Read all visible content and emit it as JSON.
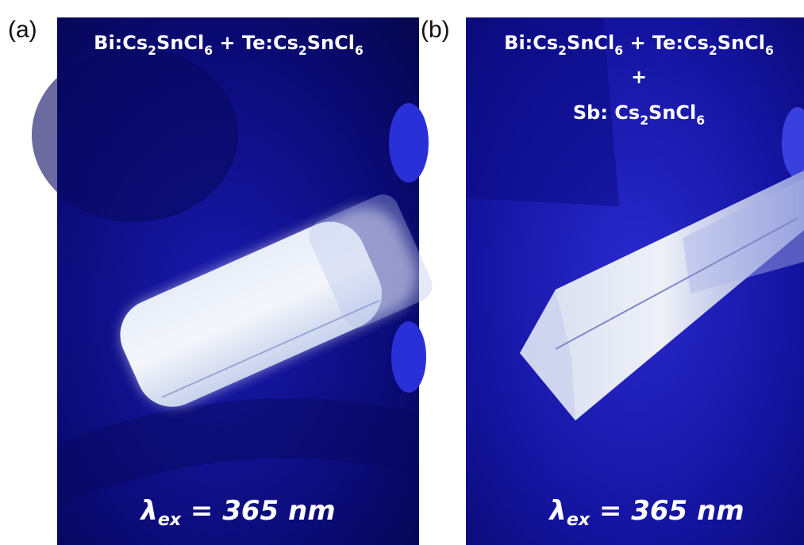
{
  "panels": [
    {
      "label": "(a)",
      "caption": [
        [
          "Bi:Cs",
          "2",
          "SnCl",
          "6",
          " + Te:Cs",
          "2",
          "SnCl",
          "6"
        ]
      ],
      "excitation": [
        "λ",
        "ex",
        " = 365 nm"
      ]
    },
    {
      "label": "(b)",
      "caption": [
        [
          "Bi:Cs",
          "2",
          "SnCl",
          "6",
          " + Te:Cs",
          "2",
          "SnCl",
          "6"
        ],
        [
          "+"
        ],
        [
          "Sb: Cs",
          "2",
          "SnCl",
          "6"
        ]
      ],
      "excitation": [
        "λ",
        "ex",
        " = 365 nm"
      ]
    }
  ]
}
